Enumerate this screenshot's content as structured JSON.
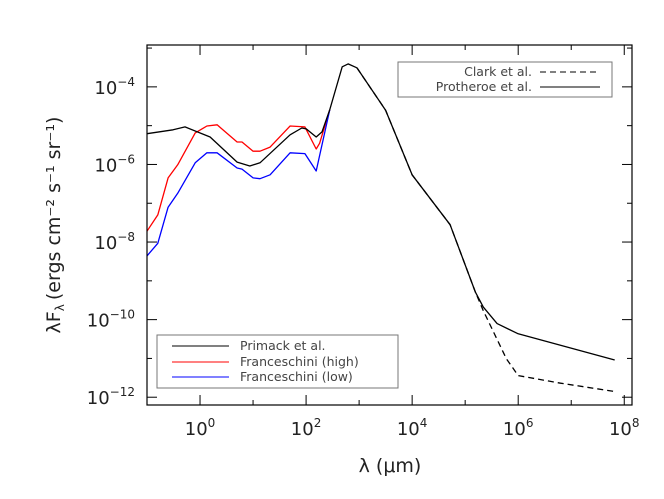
{
  "chart_data": {
    "type": "line",
    "xscale": "log",
    "yscale": "log",
    "xlim": [
      0.1,
      140000000.0
    ],
    "ylim": [
      6.3e-13,
      0.0012
    ],
    "xlabel": "λ (μm)",
    "ylabel": "λF",
    "ylabel_sub": "λ",
    "ylabel_units": "(ergs cm⁻² s⁻¹ sr⁻¹)",
    "x_ticks": [
      {
        "base": "10",
        "exp": "0",
        "value": 1
      },
      {
        "base": "10",
        "exp": "2",
        "value": 100
      },
      {
        "base": "10",
        "exp": "4",
        "value": 10000.0
      },
      {
        "base": "10",
        "exp": "6",
        "value": 1000000.0
      },
      {
        "base": "10",
        "exp": "8",
        "value": 100000000.0
      }
    ],
    "y_ticks": [
      {
        "base": "10",
        "exp": "−4",
        "value": 0.0001
      },
      {
        "base": "10",
        "exp": "−6",
        "value": 1e-06
      },
      {
        "base": "10",
        "exp": "−8",
        "value": 1e-08
      },
      {
        "base": "10",
        "exp": "−10",
        "value": 1e-10
      },
      {
        "base": "10",
        "exp": "−12",
        "value": 1e-12
      }
    ],
    "grid": false,
    "legends": [
      {
        "placement": "top-right",
        "entries": [
          {
            "name": "Clark et al.",
            "series": "clark"
          },
          {
            "name": "Protheroe et al.",
            "series": "protheroe"
          }
        ]
      },
      {
        "placement": "bottom-left",
        "entries": [
          {
            "name": "Primack et al.",
            "series": "primack"
          },
          {
            "name": "Franceschini (high)",
            "series": "fhigh"
          },
          {
            "name": "Franceschini (low)",
            "series": "flow"
          }
        ]
      }
    ],
    "series": [
      {
        "id": "clark",
        "name": "Clark et al.",
        "color": "#000000",
        "dash": "dashed",
        "x": [
          910,
          3160,
          10000.0,
          52000.0,
          155000.0,
          220000.0,
          600000.0,
          1000000.0,
          6300000.0,
          66000000.0
        ],
        "y": [
          0.00031,
          2.5e-05,
          5.4e-07,
          2.8e-08,
          5.2e-10,
          1.7e-10,
          9.8e-12,
          3.6e-12,
          2.3e-12,
          1.4e-12
        ]
      },
      {
        "id": "protheroe",
        "name": "Protheroe et al.",
        "color": "#000000",
        "dash": "solid",
        "x": [
          910,
          3160,
          10000.0,
          52000.0,
          155000.0,
          220000.0,
          400000.0,
          1000000.0,
          66000000.0
        ],
        "y": [
          0.00031,
          2.5e-05,
          5.4e-07,
          2.8e-08,
          5.2e-10,
          2.1e-10,
          7.9e-11,
          4.3e-11,
          9.1e-12
        ]
      },
      {
        "id": "fhigh",
        "name": "Franceschini (high)",
        "color": "#ff0000",
        "dash": "solid",
        "x": [
          0.1,
          0.16,
          0.25,
          0.38,
          0.81,
          1.35,
          2.1,
          5.0,
          6.2,
          10,
          13.5,
          21,
          50,
          95,
          155,
          180,
          280
        ],
        "y": [
          1.9e-08,
          5e-08,
          4.5e-07,
          9.8e-07,
          6.5e-06,
          9.8e-06,
          1.05e-05,
          3.8e-06,
          3.8e-06,
          2.2e-06,
          2.2e-06,
          2.8e-06,
          9.8e-06,
          9.3e-06,
          2.5e-06,
          3.5e-06,
          2.6e-05
        ]
      },
      {
        "id": "flow",
        "name": "Franceschini (low)",
        "color": "#0000ff",
        "dash": "solid",
        "x": [
          0.1,
          0.16,
          0.25,
          0.38,
          0.81,
          1.35,
          2.1,
          5.0,
          6.2,
          10,
          13.5,
          21,
          50,
          95,
          155,
          280
        ],
        "y": [
          4.4e-09,
          9.3e-09,
          7.9e-08,
          1.8e-07,
          1.1e-06,
          2e-06,
          2e-06,
          8.1e-07,
          7.6e-07,
          4.5e-07,
          4.3e-07,
          5.4e-07,
          2e-06,
          1.9e-06,
          6.8e-07,
          2.6e-05
        ]
      },
      {
        "id": "primack",
        "name": "Primack et al.",
        "color": "#000000",
        "dash": "solid",
        "x": [
          0.1,
          0.31,
          0.52,
          1.55,
          5.0,
          8.7,
          13.5,
          50,
          83,
          100,
          155,
          200,
          280,
          480,
          620,
          910
        ],
        "y": [
          6.2e-06,
          7.8e-06,
          9.3e-06,
          5.1e-06,
          1.15e-06,
          9.1e-07,
          1.1e-06,
          5.8e-06,
          8.7e-06,
          8.3e-06,
          5.1e-06,
          6.9e-06,
          2.6e-05,
          0.00033,
          0.00039,
          0.00031
        ]
      }
    ]
  }
}
